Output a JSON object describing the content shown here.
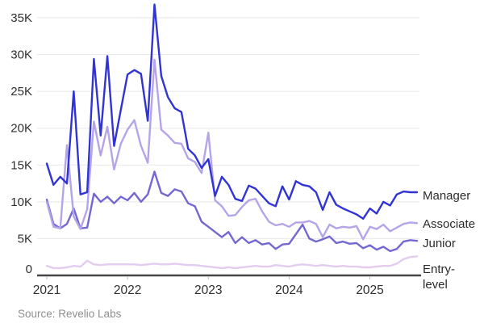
{
  "chart_data": {
    "type": "line",
    "title": "",
    "xlabel": "",
    "ylabel": "",
    "values_unit": "thousands",
    "x_unit": "month",
    "x_start": "2021-01",
    "x_end": "2025-08",
    "ylim": [
      0,
      37
    ],
    "grid": "horizontal",
    "legend_position": "right-of-line-ends",
    "y_ticks": [
      0,
      5,
      10,
      15,
      20,
      25,
      30,
      35
    ],
    "y_tick_labels": [
      "0",
      "5K",
      "10K",
      "15K",
      "20K",
      "25K",
      "30K",
      "35K"
    ],
    "x_tick_labels": [
      "2021",
      "2022",
      "2023",
      "2024",
      "2025"
    ],
    "x_tick_month_indices": [
      0,
      12,
      24,
      36,
      48
    ],
    "series": [
      {
        "name": "Entry-level",
        "color": "#e4ccf0",
        "values": [
          1.3,
          1.0,
          1.0,
          1.1,
          1.3,
          1.2,
          2.0,
          1.5,
          1.4,
          1.5,
          1.5,
          1.5,
          1.5,
          1.5,
          1.4,
          1.5,
          1.6,
          1.5,
          1.5,
          1.6,
          1.5,
          1.4,
          1.4,
          1.3,
          1.2,
          1.1,
          1.0,
          1.1,
          1.0,
          1.1,
          1.2,
          1.3,
          1.2,
          1.2,
          1.4,
          1.3,
          1.2,
          1.4,
          1.5,
          1.4,
          1.3,
          1.4,
          1.3,
          1.2,
          1.3,
          1.2,
          1.2,
          1.1,
          1.1,
          1.2,
          1.3,
          1.3,
          1.6,
          2.2,
          2.5,
          2.6
        ]
      },
      {
        "name": "Junior",
        "color": "#7467d1",
        "values": [
          10.3,
          7.0,
          6.4,
          7.0,
          9.1,
          6.4,
          6.5,
          11.1,
          10.0,
          10.7,
          9.8,
          10.7,
          10.2,
          11.2,
          10.0,
          11.0,
          14.1,
          11.2,
          10.8,
          11.7,
          11.4,
          9.8,
          9.4,
          7.3,
          6.6,
          5.9,
          5.2,
          5.9,
          4.4,
          5.2,
          4.4,
          4.8,
          4.2,
          4.4,
          3.6,
          4.2,
          4.3,
          5.6,
          6.9,
          5.0,
          4.6,
          4.9,
          5.3,
          4.4,
          4.6,
          4.3,
          4.4,
          3.7,
          4.1,
          3.5,
          3.9,
          3.3,
          3.6,
          4.6,
          4.8,
          4.7
        ]
      },
      {
        "name": "Associate",
        "color": "#b5a4e8",
        "values": [
          10.0,
          6.6,
          6.4,
          17.7,
          8.0,
          6.3,
          9.0,
          20.9,
          16.3,
          20.2,
          14.4,
          17.9,
          19.8,
          21.1,
          17.6,
          15.3,
          29.3,
          19.8,
          19.0,
          18.0,
          17.9,
          15.9,
          15.4,
          13.9,
          19.4,
          10.2,
          9.4,
          8.1,
          8.2,
          9.3,
          10.2,
          10.4,
          8.7,
          7.3,
          6.8,
          7.0,
          6.6,
          7.2,
          7.2,
          7.4,
          7.0,
          5.2,
          6.9,
          6.4,
          6.6,
          6.5,
          6.7,
          4.9,
          6.6,
          6.3,
          6.9,
          6.0,
          6.5,
          7.0,
          7.2,
          7.1
        ]
      },
      {
        "name": "Manager",
        "color": "#3134d2",
        "values": [
          15.2,
          12.3,
          13.4,
          12.5,
          25.0,
          11.0,
          11.3,
          29.4,
          19.0,
          29.8,
          17.6,
          22.5,
          27.3,
          27.9,
          27.4,
          21.0,
          36.8,
          27.1,
          24.2,
          22.7,
          22.2,
          17.2,
          16.3,
          14.6,
          15.8,
          10.8,
          13.4,
          12.3,
          10.4,
          10.1,
          12.2,
          11.8,
          10.8,
          9.8,
          9.4,
          12.1,
          10.3,
          12.8,
          12.3,
          12.1,
          11.3,
          8.9,
          11.3,
          9.6,
          9.1,
          8.7,
          8.3,
          7.7,
          9.1,
          8.4,
          10.0,
          9.5,
          11.0,
          11.4,
          11.3,
          11.3
        ]
      }
    ]
  },
  "colors": {
    "background": "#ffffff",
    "gridline": "#ebebeb",
    "axis": "#474747",
    "tick_text": "#2e2e2e",
    "source_text": "#8e8e8e"
  },
  "source": "Source: Revelio Labs"
}
